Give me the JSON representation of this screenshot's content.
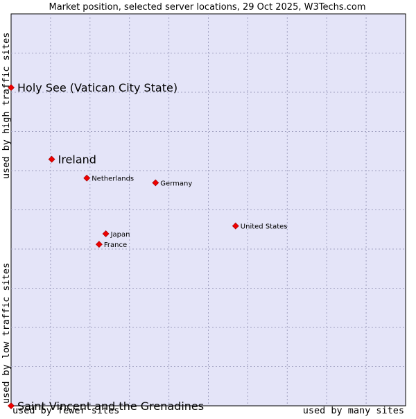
{
  "chart_data": {
    "type": "scatter",
    "title": "Market position, selected server locations, 29 Oct 2025, W3Techs.com",
    "xlabel": {
      "low": "used by fewer sites",
      "high": "used by many sites"
    },
    "ylabel": {
      "low": "used by low traffic sites",
      "high": "used by high traffic sites"
    },
    "xlim": [
      0,
      100
    ],
    "ylim": [
      0,
      100
    ],
    "grid": true,
    "point_color": "#ee0000",
    "background_color": "#e4e4f8",
    "points": [
      {
        "label": "Holy See (Vatican City State)",
        "x": 0.0,
        "y": 81.2,
        "size": "large"
      },
      {
        "label": "Ireland",
        "x": 10.3,
        "y": 62.9,
        "size": "large"
      },
      {
        "label": "Netherlands",
        "x": 19.2,
        "y": 58.1,
        "size": "small"
      },
      {
        "label": "Germany",
        "x": 36.6,
        "y": 56.9,
        "size": "small"
      },
      {
        "label": "United States",
        "x": 56.9,
        "y": 45.9,
        "size": "small"
      },
      {
        "label": "Japan",
        "x": 24.0,
        "y": 43.9,
        "size": "small"
      },
      {
        "label": "France",
        "x": 22.3,
        "y": 41.2,
        "size": "small"
      },
      {
        "label": "Saint Vincent and the Grenadines",
        "x": 0.0,
        "y": 0.0,
        "size": "large"
      }
    ]
  }
}
